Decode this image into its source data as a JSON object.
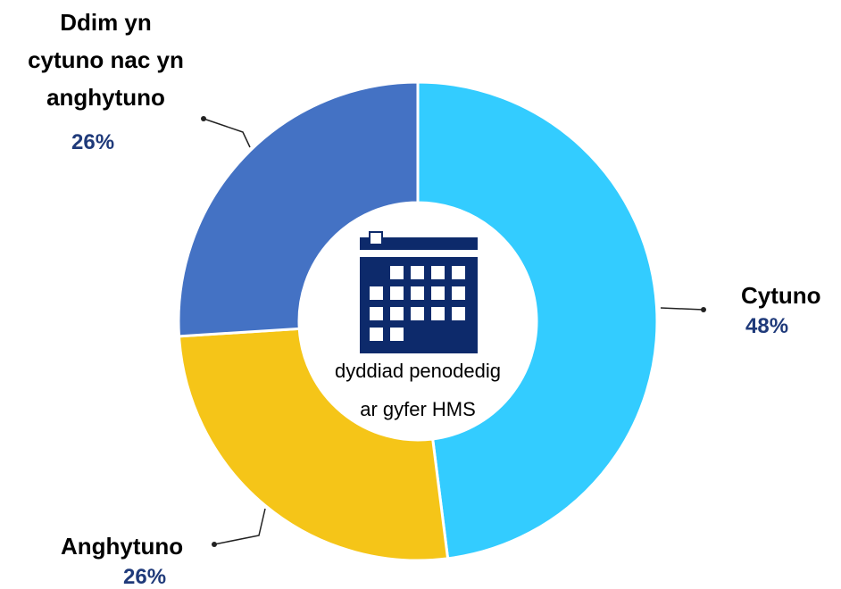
{
  "chart_data": {
    "type": "donut",
    "categories": [
      "Cytuno",
      "Anghytuno",
      "Ddim yn cytuno nac yn anghytuno"
    ],
    "values": [
      48,
      26,
      26
    ],
    "value_labels": [
      "48%",
      "26%",
      "26%"
    ],
    "colors": [
      "#33ccff",
      "#f5c518",
      "#4472c4"
    ],
    "center_label": [
      "dyddiad penodedig",
      "ar gyfer HMS"
    ]
  }
}
